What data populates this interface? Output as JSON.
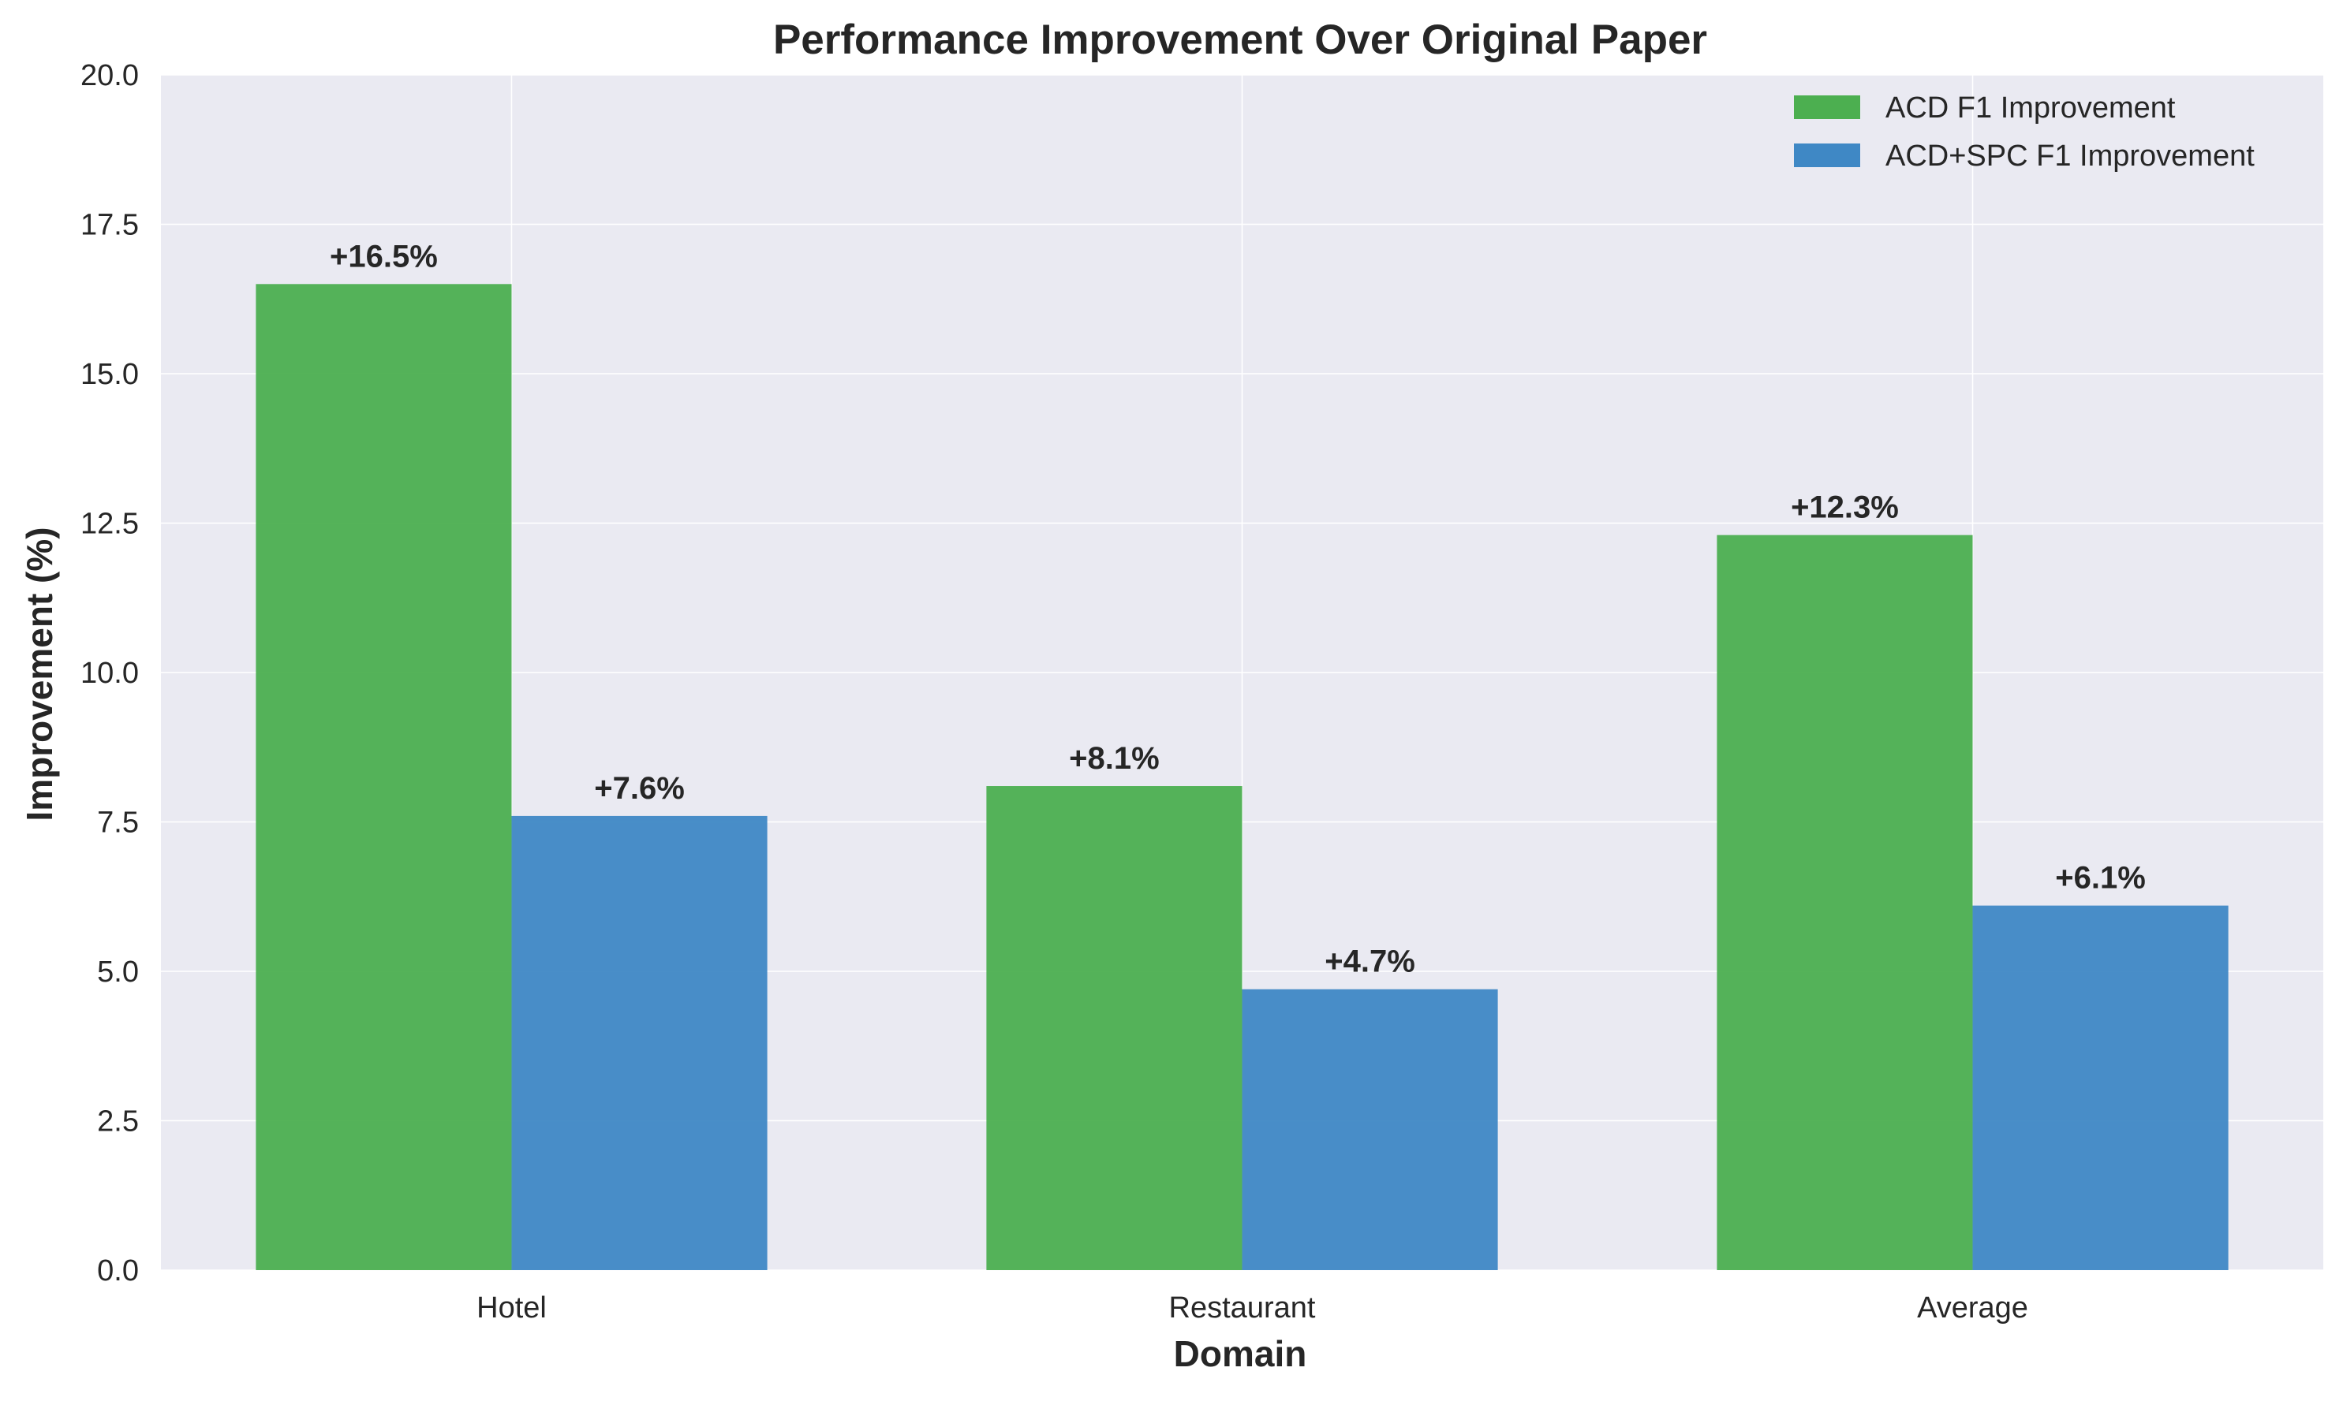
{
  "chart_data": {
    "type": "bar",
    "title": "Performance Improvement Over Original Paper",
    "xlabel": "Domain",
    "ylabel": "Improvement (%)",
    "categories": [
      "Hotel",
      "Restaurant",
      "Average"
    ],
    "series": [
      {
        "name": "ACD F1 Improvement",
        "color": "#4caf50",
        "values": [
          16.5,
          8.1,
          12.3
        ],
        "labels": [
          "+16.5%",
          "+8.1%",
          "+12.3%"
        ]
      },
      {
        "name": "ACD+SPC F1 Improvement",
        "color": "#3f88c5",
        "values": [
          7.6,
          4.7,
          6.1
        ],
        "labels": [
          "+7.6%",
          "+4.7%",
          "+6.1%"
        ]
      }
    ],
    "ylim": [
      0,
      20
    ],
    "yticks": [
      "0.0",
      "2.5",
      "5.0",
      "7.5",
      "10.0",
      "12.5",
      "15.0",
      "17.5",
      "20.0"
    ],
    "grid": true,
    "legend_position": "top-right",
    "background_color": "#eaeaf2"
  }
}
